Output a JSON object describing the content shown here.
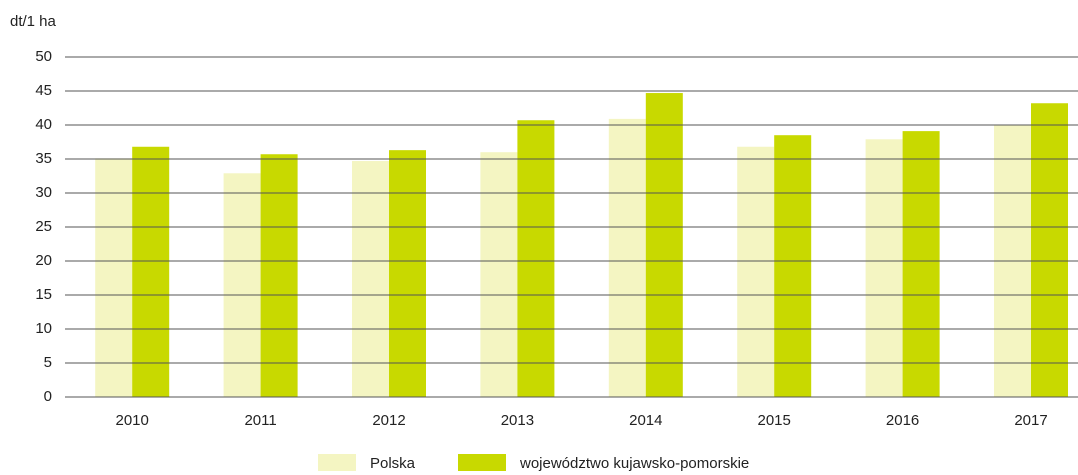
{
  "chart_data": {
    "type": "bar",
    "y_label": "dt/1 ha",
    "categories": [
      "2010",
      "2011",
      "2012",
      "2013",
      "2014",
      "2015",
      "2016",
      "2017"
    ],
    "series": [
      {
        "name": "Polska",
        "color": "#f4f5c2",
        "values": [
          35.1,
          32.9,
          34.7,
          36.0,
          40.9,
          36.8,
          37.9,
          40.0
        ]
      },
      {
        "name": "województwo kujawsko-pomorskie",
        "color": "#c8d900",
        "values": [
          36.8,
          35.7,
          36.3,
          40.7,
          44.7,
          38.5,
          39.1,
          43.2
        ]
      }
    ],
    "ylim": [
      0,
      50
    ],
    "yticks": [
      0,
      5,
      10,
      15,
      20,
      25,
      30,
      35,
      40,
      45,
      50
    ],
    "grid": true,
    "legend": "bottom"
  }
}
